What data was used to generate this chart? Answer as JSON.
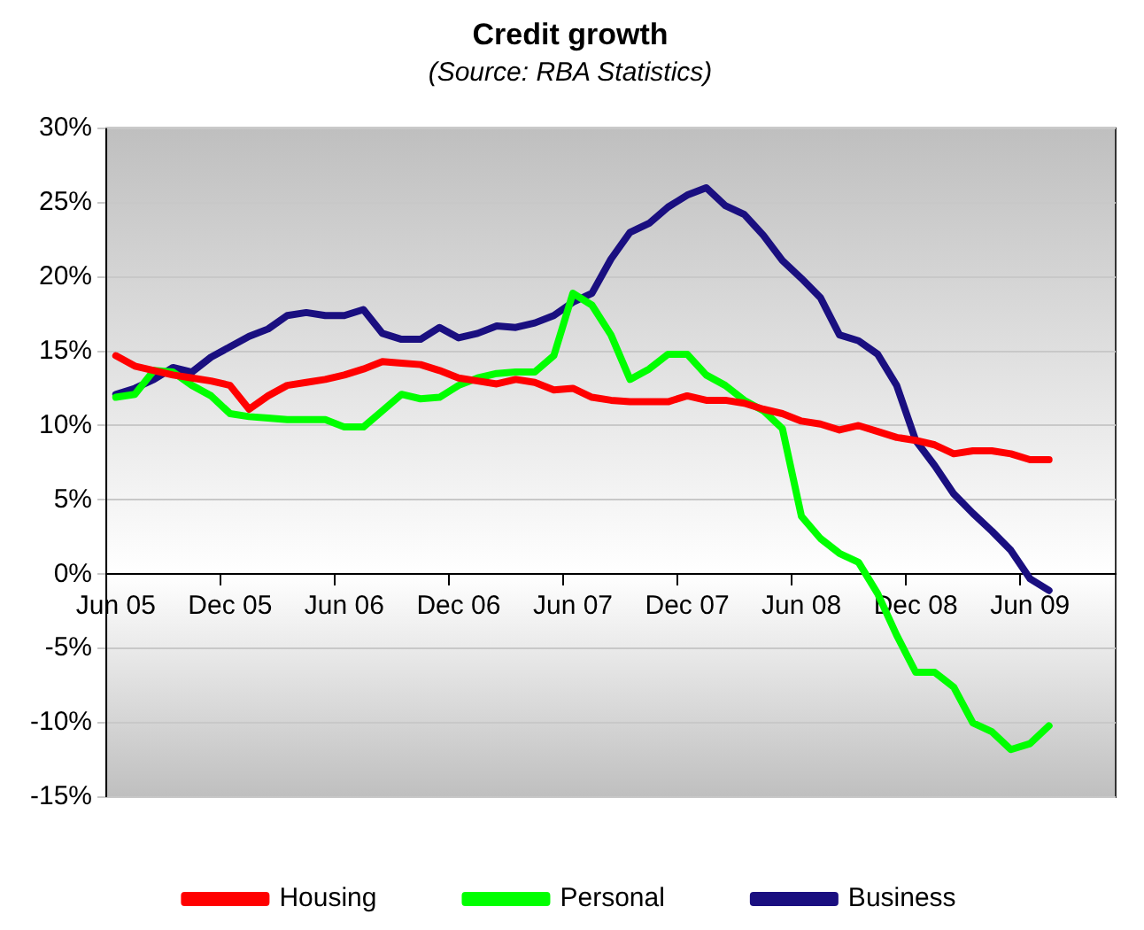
{
  "chart_data": {
    "type": "line",
    "title": "Credit growth",
    "subtitle": "(Source: RBA Statistics)",
    "categories": [
      "Jun 05",
      null,
      null,
      null,
      null,
      null,
      "Dec 05",
      null,
      null,
      null,
      null,
      null,
      "Jun 06",
      null,
      null,
      null,
      null,
      null,
      "Dec 06",
      null,
      null,
      null,
      null,
      null,
      "Jun 07",
      null,
      null,
      null,
      null,
      null,
      "Dec 07",
      null,
      null,
      null,
      null,
      null,
      "Jun 08",
      null,
      null,
      null,
      null,
      null,
      "Dec 08",
      null,
      null,
      null,
      null,
      null,
      "Jun 09",
      null,
      null,
      null,
      null
    ],
    "series": [
      {
        "name": "Housing",
        "color": "#ff0000",
        "values": [
          14.7,
          14.0,
          13.7,
          13.4,
          13.2,
          13.0,
          12.7,
          11.1,
          12.0,
          12.7,
          12.9,
          13.1,
          13.4,
          13.8,
          14.3,
          14.2,
          14.1,
          13.7,
          13.2,
          13.0,
          12.8,
          13.1,
          12.9,
          12.4,
          12.5,
          11.9,
          11.7,
          11.6,
          11.6,
          11.6,
          12.0,
          11.7,
          11.7,
          11.5,
          11.1,
          10.8,
          10.3,
          10.1,
          9.7,
          10.0,
          9.6,
          9.2,
          9.0,
          8.7,
          8.1,
          8.3,
          8.3,
          8.1,
          7.7,
          7.7,
          null,
          null,
          null
        ]
      },
      {
        "name": "Personal",
        "color": "#00ff00",
        "values": [
          11.9,
          12.1,
          13.7,
          13.6,
          12.7,
          12.0,
          10.8,
          10.6,
          10.5,
          10.4,
          10.4,
          10.4,
          9.9,
          9.9,
          11.0,
          12.1,
          11.8,
          11.9,
          12.7,
          13.2,
          13.5,
          13.6,
          13.6,
          14.7,
          18.9,
          18.1,
          16.1,
          13.1,
          13.8,
          14.8,
          14.8,
          13.4,
          12.7,
          11.7,
          11.0,
          9.8,
          3.9,
          2.4,
          1.4,
          0.8,
          -1.3,
          -4.1,
          -6.6,
          -6.6,
          -7.6,
          -10.0,
          -10.6,
          -11.8,
          -11.4,
          -10.2,
          null,
          null,
          null
        ]
      },
      {
        "name": "Business",
        "color": "#1a0f80",
        "values": [
          12.1,
          12.5,
          13.1,
          13.9,
          13.6,
          14.6,
          15.3,
          16.0,
          16.5,
          17.4,
          17.6,
          17.4,
          17.4,
          17.8,
          16.2,
          15.8,
          15.8,
          16.6,
          15.9,
          16.2,
          16.7,
          16.6,
          16.9,
          17.4,
          18.3,
          18.9,
          21.2,
          23.0,
          23.6,
          24.7,
          25.5,
          26.0,
          24.8,
          24.2,
          22.8,
          21.1,
          19.9,
          18.6,
          16.1,
          15.7,
          14.8,
          12.7,
          9.0,
          7.3,
          5.4,
          4.1,
          2.9,
          1.6,
          -0.3,
          -1.1,
          null,
          null,
          null
        ]
      }
    ],
    "ylim": [
      -15,
      30
    ],
    "yticks": [
      {
        "value": -15,
        "label": "-15%"
      },
      {
        "value": -10,
        "label": "-10%"
      },
      {
        "value": -5,
        "label": "-5%"
      },
      {
        "value": 0,
        "label": "0%"
      },
      {
        "value": 5,
        "label": "5%"
      },
      {
        "value": 10,
        "label": "10%"
      },
      {
        "value": 15,
        "label": "15%"
      },
      {
        "value": 20,
        "label": "20%"
      },
      {
        "value": 25,
        "label": "25%"
      },
      {
        "value": 30,
        "label": "30%"
      }
    ],
    "grid": "y",
    "legend": "bottom",
    "marker": "none",
    "line_style": "solid"
  }
}
